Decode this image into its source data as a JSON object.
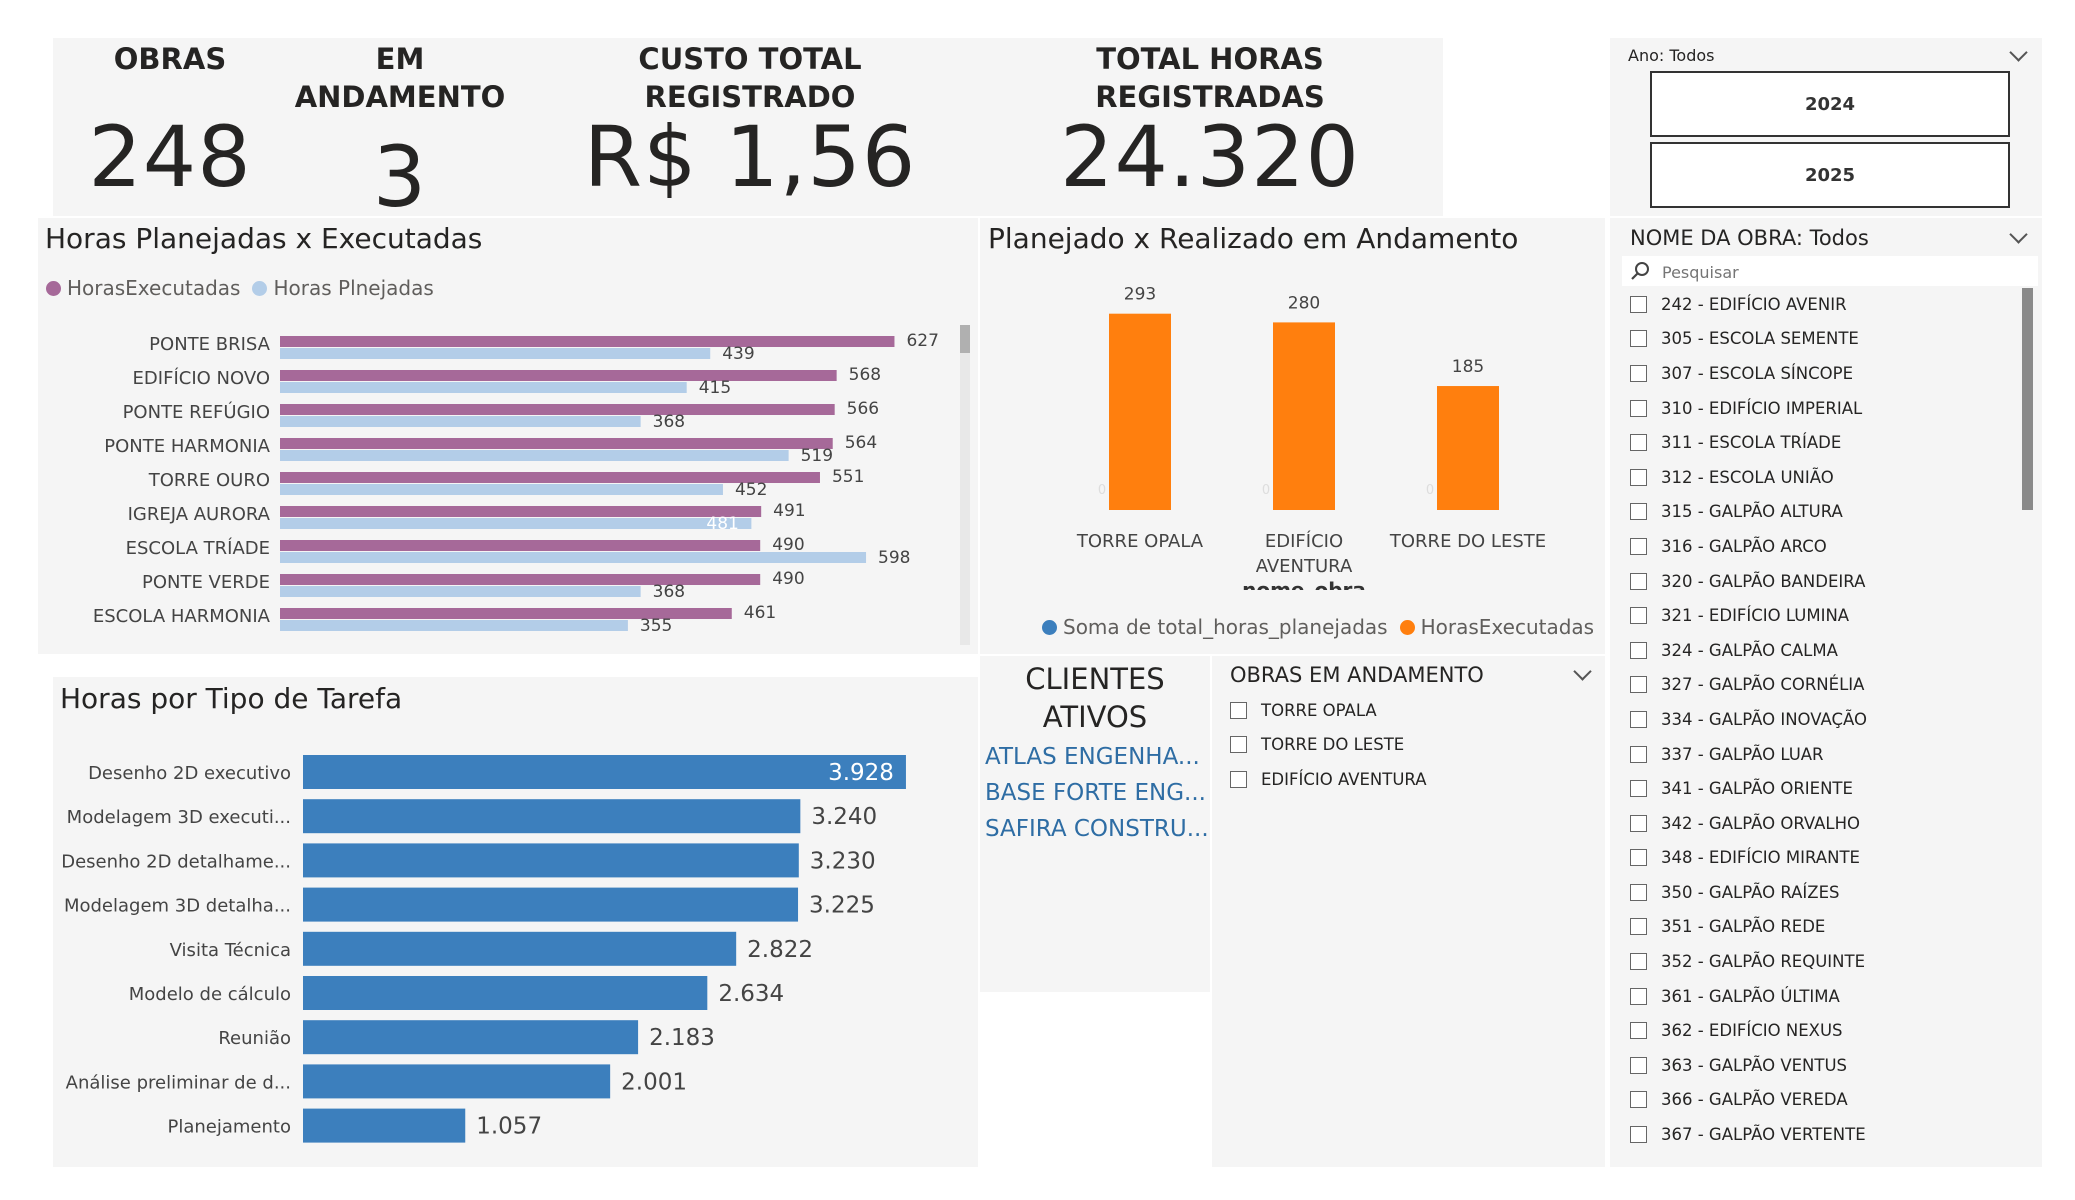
{
  "kpis": {
    "obras": {
      "label": "OBRAS",
      "value": "248"
    },
    "em_andamento": {
      "label_line1": "EM",
      "label_line2": "ANDAMENTO",
      "value": "3"
    },
    "custo": {
      "label": "CUSTO TOTAL REGISTRADO",
      "value": "R$ 1,56 Mi"
    },
    "horas": {
      "label": "TOTAL HORAS REGISTRADAS",
      "value": "24.320"
    }
  },
  "ano_slicer": {
    "header": "Ano: Todos",
    "options": [
      "2024",
      "2025"
    ]
  },
  "obra_slicer": {
    "header": "NOME DA OBRA: Todos",
    "search_placeholder": "Pesquisar",
    "items": [
      "242 - EDIFÍCIO AVENIR",
      "305 - ESCOLA SEMENTE",
      "307 - ESCOLA SÍNCOPE",
      "310 - EDIFÍCIO IMPERIAL",
      "311 - ESCOLA TRÍADE",
      "312 - ESCOLA UNIÃO",
      "315 - GALPÃO ALTURA",
      "316 - GALPÃO ARCO",
      "320 - GALPÃO BANDEIRA",
      "321 - EDIFÍCIO LUMINA",
      "324 - GALPÃO CALMA",
      "327 - GALPÃO CORNÉLIA",
      "334 - GALPÃO INOVAÇÃO",
      "337 - GALPÃO LUAR",
      "341 - GALPÃO ORIENTE",
      "342 - GALPÃO ORVALHO",
      "348 - EDIFÍCIO MIRANTE",
      "350 - GALPÃO RAÍZES",
      "351 - GALPÃO REDE",
      "352 - GALPÃO REQUINTE",
      "361 - GALPÃO ÚLTIMA",
      "362 - EDIFÍCIO NEXUS",
      "363 - GALPÃO VENTUS",
      "366 - GALPÃO VEREDA",
      "367 - GALPÃO VERTENTE"
    ]
  },
  "clientes": {
    "title_line1": "CLIENTES",
    "title_line2": "ATIVOS",
    "items": [
      "ATLAS ENGENHA...",
      "BASE FORTE ENG...",
      "SAFIRA CONSTRU..."
    ]
  },
  "andamento_slicer": {
    "header": "OBRAS EM ANDAMENTO",
    "items": [
      "TORRE OPALA",
      "TORRE DO LESTE",
      "EDIFÍCIO AVENTURA"
    ]
  },
  "colors": {
    "executadas": "#a66999",
    "planejadas": "#b3cde8",
    "tarefa_bar": "#3c7fbd",
    "realizado": "#ff7f0e",
    "planejado_blue": "#3c7fbd"
  },
  "chart_data": [
    {
      "type": "bar",
      "orientation": "horizontal",
      "title": "Horas Planejadas x Executadas",
      "categories": [
        "PONTE BRISA",
        "EDIFÍCIO NOVO",
        "PONTE REFÚGIO",
        "PONTE HARMONIA",
        "TORRE OURO",
        "IGREJA AURORA",
        "ESCOLA TRÍADE",
        "PONTE VERDE",
        "ESCOLA HARMONIA"
      ],
      "series": [
        {
          "name": "HorasExecutadas",
          "values": [
            627,
            568,
            566,
            564,
            551,
            491,
            490,
            490,
            461
          ]
        },
        {
          "name": "Horas Plnejadas",
          "values": [
            439,
            415,
            368,
            519,
            452,
            481,
            598,
            368,
            355
          ]
        }
      ],
      "legend": "top-left"
    },
    {
      "type": "bar",
      "orientation": "vertical",
      "title": "Planejado x Realizado em Andamento",
      "xlabel": "nome_obra",
      "categories": [
        "TORRE OPALA",
        "EDIFÍCIO AVENTURA",
        "TORRE DO LESTE"
      ],
      "category_lines": [
        [
          "TORRE OPALA"
        ],
        [
          "EDIFÍCIO",
          "AVENTURA"
        ],
        [
          "TORRE DO LESTE"
        ]
      ],
      "series": [
        {
          "name": "Soma de total_horas_planejadas",
          "values": [
            0,
            0,
            0
          ]
        },
        {
          "name": "HorasExecutadas",
          "values": [
            293,
            280,
            185
          ]
        }
      ],
      "legend": "bottom"
    },
    {
      "type": "bar",
      "orientation": "horizontal",
      "title": "Horas por Tipo de Tarefa",
      "categories": [
        "Desenho 2D executivo",
        "Modelagem 3D executi...",
        "Desenho 2D detalhame...",
        "Modelagem 3D detalha...",
        "Visita Técnica",
        "Modelo de cálculo",
        "Reunião",
        "Análise preliminar de d...",
        "Planejamento"
      ],
      "values": [
        3928,
        3240,
        3230,
        3225,
        2822,
        2634,
        2183,
        2001,
        1057
      ],
      "labels": [
        "3.928",
        "3.240",
        "3.230",
        "3.225",
        "2.822",
        "2.634",
        "2.183",
        "2.001",
        "1.057"
      ]
    }
  ]
}
